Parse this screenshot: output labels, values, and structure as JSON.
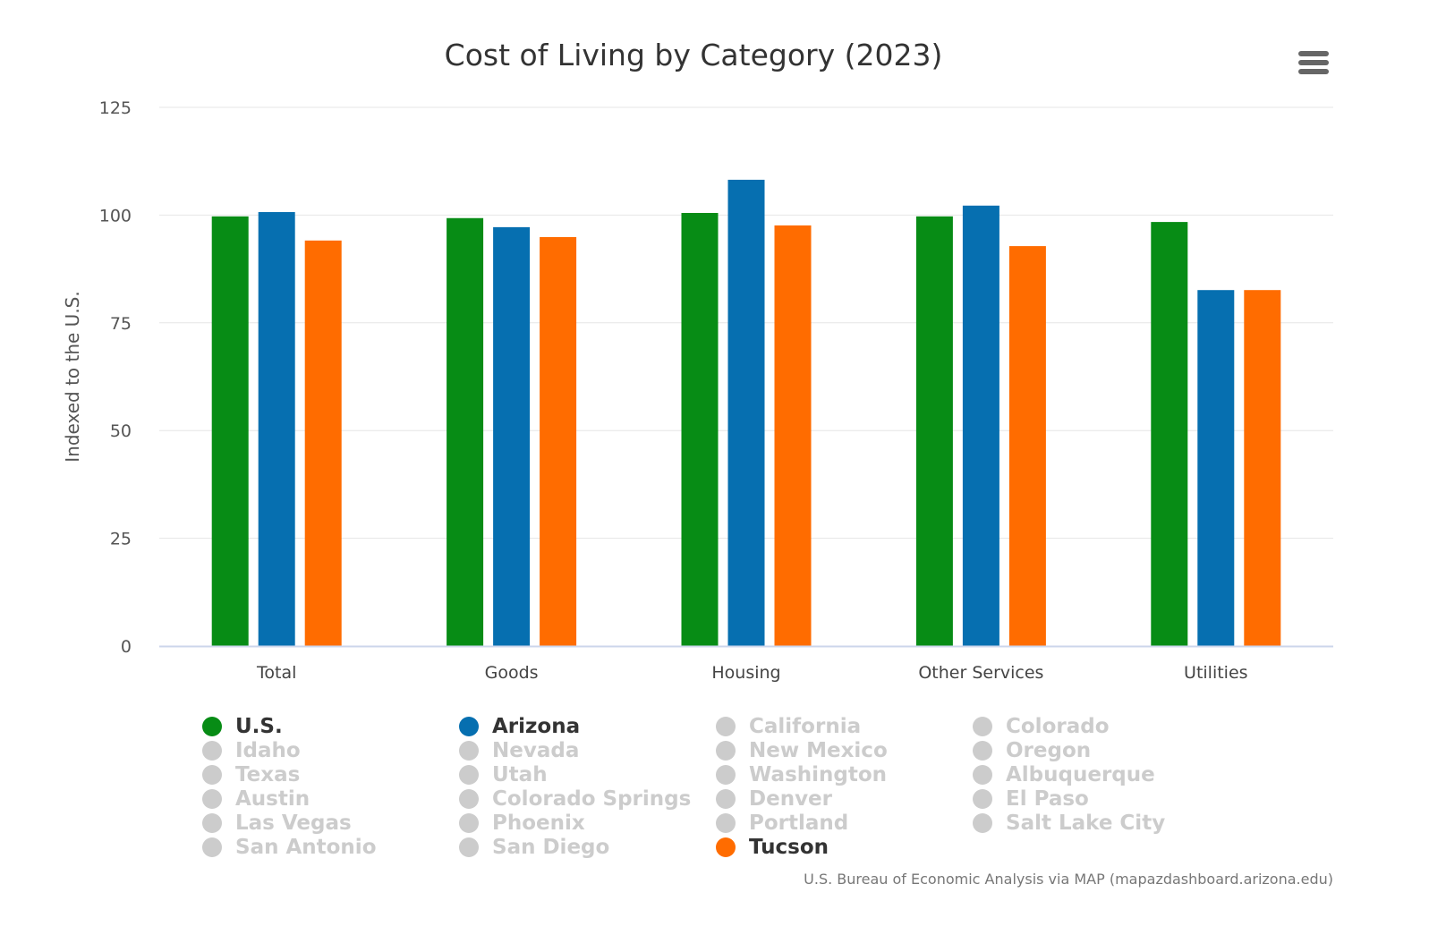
{
  "chart_data": {
    "type": "bar",
    "title": "Cost of Living by Category (2023)",
    "ylabel": "Indexed to the U.S.",
    "xlabel": "",
    "ylim": [
      0,
      125
    ],
    "yticks": [
      0,
      25,
      50,
      75,
      100,
      125
    ],
    "grid": true,
    "categories": [
      "Total",
      "Goods",
      "Housing",
      "Other Services",
      "Utilities"
    ],
    "series": [
      {
        "name": "U.S.",
        "color": "#078c15",
        "values": [
          99.7,
          99.3,
          100.5,
          99.7,
          98.4
        ]
      },
      {
        "name": "Arizona",
        "color": "#066fb0",
        "values": [
          100.7,
          97.2,
          108.2,
          102.2,
          82.6
        ]
      },
      {
        "name": "Tucson",
        "color": "#ff6c00",
        "values": [
          94.1,
          94.9,
          97.6,
          92.8,
          82.6
        ]
      }
    ],
    "legend_placement": "bottom"
  },
  "legend": [
    {
      "label": "U.S.",
      "visible": true,
      "color": "#078c15"
    },
    {
      "label": "Arizona",
      "visible": true,
      "color": "#066fb0"
    },
    {
      "label": "California",
      "visible": false
    },
    {
      "label": "Colorado",
      "visible": false
    },
    {
      "label": "Idaho",
      "visible": false
    },
    {
      "label": "Nevada",
      "visible": false
    },
    {
      "label": "New Mexico",
      "visible": false
    },
    {
      "label": "Oregon",
      "visible": false
    },
    {
      "label": "Texas",
      "visible": false
    },
    {
      "label": "Utah",
      "visible": false
    },
    {
      "label": "Washington",
      "visible": false
    },
    {
      "label": "Albuquerque",
      "visible": false
    },
    {
      "label": "Austin",
      "visible": false
    },
    {
      "label": "Colorado Springs",
      "visible": false
    },
    {
      "label": "Denver",
      "visible": false
    },
    {
      "label": "El Paso",
      "visible": false
    },
    {
      "label": "Las Vegas",
      "visible": false
    },
    {
      "label": "Phoenix",
      "visible": false
    },
    {
      "label": "Portland",
      "visible": false
    },
    {
      "label": "Salt Lake City",
      "visible": false
    },
    {
      "label": "San Antonio",
      "visible": false
    },
    {
      "label": "San Diego",
      "visible": false
    },
    {
      "label": "Tucson",
      "visible": true,
      "color": "#ff6c00"
    }
  ],
  "menu_icon": "hamburger-menu-icon",
  "credit": "U.S. Bureau of Economic Analysis via MAP (mapazdashboard.arizona.edu)"
}
